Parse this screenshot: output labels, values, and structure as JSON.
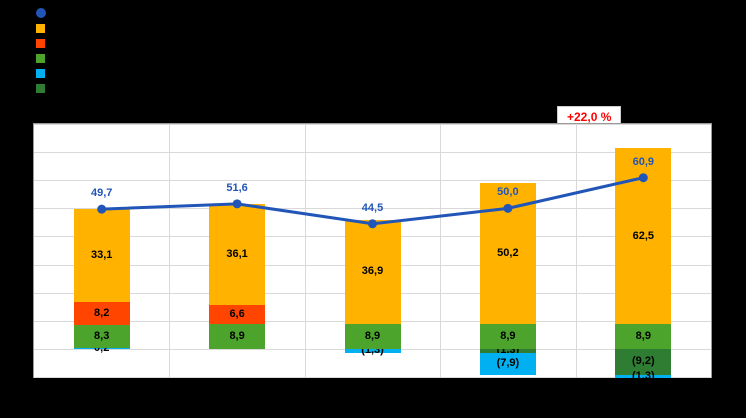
{
  "chart_data": {
    "type": "bar",
    "subtype": "stacked-bar-with-total-line",
    "title": "",
    "categories": [
      "",
      "",
      "",
      "",
      ""
    ],
    "bar_series": [
      {
        "name": "dark-green",
        "color": "#2E7D32",
        "values": [
          0,
          0,
          0,
          -1.3,
          -9.2
        ],
        "labels": [
          "",
          "",
          "",
          "(1,3)",
          "(9,2)"
        ]
      },
      {
        "name": "cyan",
        "color": "#00B0F0",
        "values": [
          0.2,
          0,
          -1.3,
          -7.9,
          -1.3
        ],
        "labels": [
          "0,2",
          "",
          "(1,3)",
          "(7,9)",
          "(1,3)"
        ]
      },
      {
        "name": "green",
        "color": "#4CA42C",
        "values": [
          8.3,
          8.9,
          8.9,
          8.9,
          8.9
        ],
        "labels": [
          "8,3",
          "8,9",
          "8,9",
          "8,9",
          "8,9"
        ]
      },
      {
        "name": "red",
        "color": "#FF4500",
        "values": [
          8.2,
          6.6,
          0,
          0,
          0
        ],
        "labels": [
          "8,2",
          "6,6",
          "",
          "",
          ""
        ]
      },
      {
        "name": "orange",
        "color": "#FFB300",
        "values": [
          33.1,
          36.1,
          36.9,
          50.2,
          62.5
        ],
        "labels": [
          "33,1",
          "36,1",
          "36,9",
          "50,2",
          "62,5"
        ]
      }
    ],
    "line_series": {
      "name": "total-line",
      "color": "#2255B8",
      "values": [
        49.7,
        51.6,
        44.5,
        50.0,
        60.9
      ],
      "labels": [
        "49,7",
        "51,6",
        "44,5",
        "50,0",
        "60,9"
      ]
    },
    "annotation": {
      "text": "+22,0 %",
      "color": "#FF0000"
    },
    "axis": {
      "ymin": -10,
      "ymax": 80,
      "grid_step": 10,
      "grid": true
    },
    "legend": {
      "position": "top-left",
      "items": [
        {
          "shape": "circle",
          "color": "#2255B8",
          "label": ""
        },
        {
          "shape": "square",
          "color": "#FFB300",
          "label": ""
        },
        {
          "shape": "square",
          "color": "#FF4500",
          "label": ""
        },
        {
          "shape": "square",
          "color": "#4CA42C",
          "label": ""
        },
        {
          "shape": "square",
          "color": "#00B0F0",
          "label": ""
        },
        {
          "shape": "square",
          "color": "#2E7D32",
          "label": ""
        }
      ]
    },
    "number_format": "comma-decimal, negatives shown in parentheses"
  }
}
